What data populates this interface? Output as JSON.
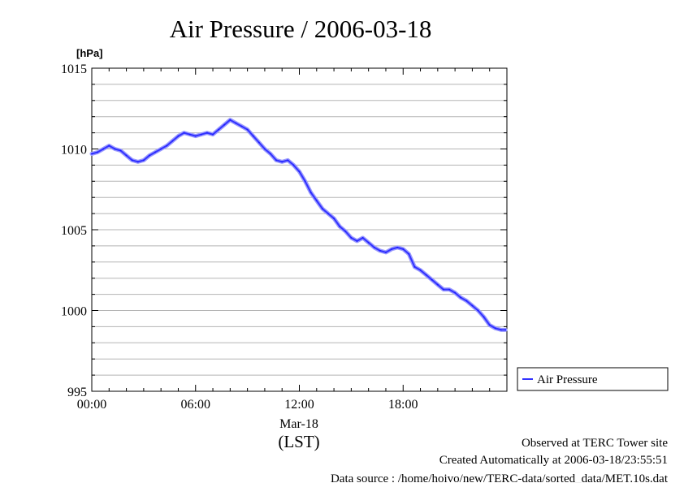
{
  "chart_data": {
    "type": "line",
    "title": "Air Pressure / 2006-03-18",
    "ylabel": "[hPa]",
    "xlabel": "(LST)",
    "date_label": "Mar-18",
    "ylim": [
      995,
      1015
    ],
    "xlim": [
      "00:00",
      "23:59"
    ],
    "y_ticks": [
      "1015",
      "1010",
      "1005",
      "1000",
      "995"
    ],
    "x_ticks": [
      "00:00",
      "06:00",
      "12:00",
      "18:00"
    ],
    "grid": true,
    "legend_position": "right",
    "line_color": "#3333ff",
    "series": [
      {
        "name": "Air Pressure",
        "x": [
          "00:00",
          "00:20",
          "00:40",
          "01:00",
          "01:20",
          "01:40",
          "02:00",
          "02:20",
          "02:40",
          "03:00",
          "03:20",
          "03:40",
          "04:00",
          "04:20",
          "04:40",
          "05:00",
          "05:20",
          "05:40",
          "06:00",
          "06:20",
          "06:40",
          "07:00",
          "07:20",
          "07:40",
          "08:00",
          "08:20",
          "08:40",
          "09:00",
          "09:20",
          "09:40",
          "10:00",
          "10:20",
          "10:40",
          "11:00",
          "11:20",
          "11:40",
          "12:00",
          "12:20",
          "12:40",
          "13:00",
          "13:20",
          "13:40",
          "14:00",
          "14:20",
          "14:40",
          "15:00",
          "15:20",
          "15:40",
          "16:00",
          "16:20",
          "16:40",
          "17:00",
          "17:20",
          "17:40",
          "18:00",
          "18:20",
          "18:40",
          "19:00",
          "19:20",
          "19:40",
          "20:00",
          "20:20",
          "20:40",
          "21:00",
          "21:20",
          "21:40",
          "22:00",
          "22:20",
          "22:40",
          "23:00",
          "23:20",
          "23:40",
          "23:55"
        ],
        "values": [
          1009.7,
          1009.8,
          1010.0,
          1010.2,
          1010.0,
          1009.9,
          1009.6,
          1009.3,
          1009.2,
          1009.3,
          1009.6,
          1009.8,
          1010.0,
          1010.2,
          1010.5,
          1010.8,
          1011.0,
          1010.9,
          1010.8,
          1010.9,
          1011.0,
          1010.9,
          1011.2,
          1011.5,
          1011.8,
          1011.6,
          1011.4,
          1011.2,
          1010.8,
          1010.4,
          1010.0,
          1009.7,
          1009.3,
          1009.2,
          1009.3,
          1009.0,
          1008.6,
          1008.0,
          1007.3,
          1006.8,
          1006.3,
          1006.0,
          1005.7,
          1005.2,
          1004.9,
          1004.5,
          1004.3,
          1004.5,
          1004.2,
          1003.9,
          1003.7,
          1003.6,
          1003.8,
          1003.9,
          1003.8,
          1003.5,
          1002.7,
          1002.5,
          1002.2,
          1001.9,
          1001.6,
          1001.3,
          1001.3,
          1001.1,
          1000.8,
          1000.6,
          1000.3,
          1000.0,
          999.6,
          999.1,
          998.9,
          998.8,
          998.8
        ]
      }
    ]
  },
  "footer": {
    "line1": "Observed at TERC Tower site",
    "line2": "Created Automatically at 2006-03-18/23:55:51",
    "line3": "Data source : /home/hoivo/new/TERC-data/sorted_data/MET.10s.dat"
  }
}
